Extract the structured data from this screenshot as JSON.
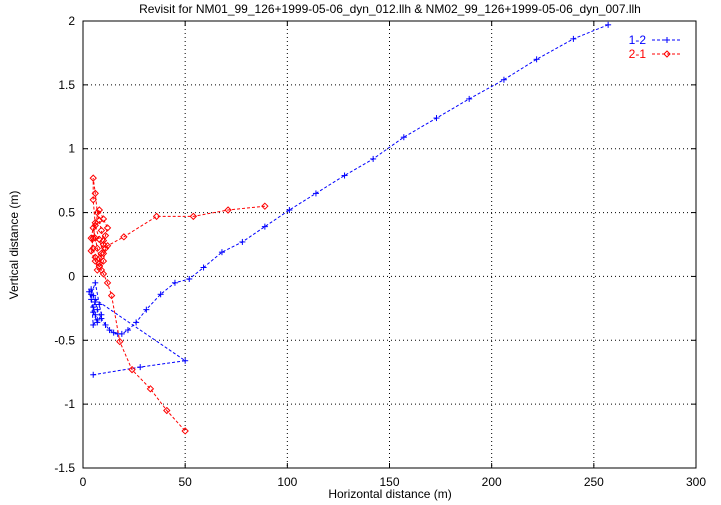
{
  "chart_data": {
    "type": "line",
    "title": "Revisit for NM01_99_126+1999-05-06_dyn_012.llh & NM02_99_126+1999-05-06_dyn_007.llh",
    "xlabel": "Horizontal distance (m)",
    "ylabel": "Vertical distance (m)",
    "xlim": [
      0,
      300
    ],
    "ylim": [
      -1.5,
      2
    ],
    "xticks": [
      "0",
      "50",
      "100",
      "150",
      "200",
      "250",
      "300"
    ],
    "yticks": [
      "-1.5",
      "-1",
      "-0.5",
      "0",
      "0.5",
      "1",
      "1.5",
      "2"
    ],
    "grid": true,
    "legend_position": "top-right",
    "series": [
      {
        "name": "1-2",
        "color": "#0000ff",
        "marker": "plus",
        "x": [
          257,
          240,
          222,
          206,
          189,
          173,
          157,
          142,
          128,
          114,
          101,
          89,
          78,
          68,
          59,
          52,
          45,
          38,
          31,
          26,
          22,
          19,
          17,
          15,
          13,
          11,
          9,
          7,
          6,
          5,
          4,
          3,
          4,
          5,
          6,
          7,
          5,
          4,
          6,
          8,
          9,
          7,
          5,
          6,
          50,
          28,
          5
        ],
        "y": [
          1.97,
          1.86,
          1.7,
          1.54,
          1.39,
          1.24,
          1.09,
          0.92,
          0.79,
          0.65,
          0.52,
          0.39,
          0.27,
          0.19,
          0.07,
          -0.02,
          -0.05,
          -0.14,
          -0.26,
          -0.36,
          -0.42,
          -0.45,
          -0.45,
          -0.44,
          -0.42,
          -0.38,
          -0.33,
          -0.26,
          -0.2,
          -0.15,
          -0.1,
          -0.12,
          -0.18,
          -0.24,
          -0.3,
          -0.34,
          -0.38,
          -0.14,
          -0.05,
          -0.22,
          -0.3,
          -0.36,
          -0.28,
          -0.18,
          -0.66,
          -0.71,
          -0.77
        ]
      },
      {
        "name": "2-1",
        "color": "#ff0000",
        "marker": "diamond",
        "x": [
          89,
          71,
          54,
          36,
          20,
          12,
          10,
          8,
          6,
          5,
          5,
          6,
          7,
          8,
          9,
          10,
          11,
          10,
          9,
          8,
          7,
          6,
          5,
          4,
          5,
          6,
          7,
          8,
          9,
          10,
          11,
          12,
          10,
          8,
          6,
          5,
          4,
          6,
          8,
          10,
          12,
          14,
          18,
          24,
          33,
          41,
          50
        ],
        "y": [
          0.55,
          0.52,
          0.47,
          0.47,
          0.31,
          0.24,
          0.18,
          0.29,
          0.4,
          0.6,
          0.77,
          0.65,
          0.5,
          0.44,
          0.36,
          0.28,
          0.22,
          0.12,
          0.05,
          0.14,
          0.22,
          0.3,
          0.38,
          0.3,
          0.22,
          0.15,
          0.05,
          0.1,
          0.18,
          0.25,
          0.32,
          0.38,
          0.45,
          0.52,
          0.42,
          0.3,
          0.2,
          0.12,
          0.08,
          0.02,
          -0.05,
          -0.15,
          -0.51,
          -0.73,
          -0.88,
          -1.05,
          -1.21
        ]
      }
    ]
  }
}
